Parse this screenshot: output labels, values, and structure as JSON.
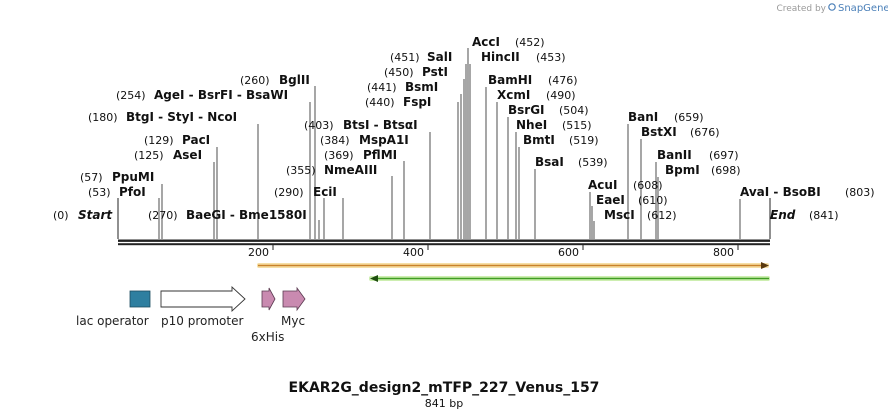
{
  "watermark": {
    "created_by": "Created by",
    "brand": "SnapGene"
  },
  "title": "EKAR2G_design2_mTFP_227_Venus_157",
  "subtitle": "841 bp",
  "colors": {
    "line": "#222222",
    "orf_forward": "#e8a24a",
    "orf_reverse": "#62c13a",
    "lac_operator": "#2e7fa0",
    "promoter": "#ffffff",
    "tag": "#c98ab0"
  },
  "ends": {
    "start_label": "Start",
    "start_pos": "(0)",
    "end_label": "End",
    "end_pos": "(841)"
  },
  "sites": [
    {
      "name": "AccI",
      "pos": "(452)"
    },
    {
      "name": "HincII",
      "pos": "(453)"
    },
    {
      "name": "SalI",
      "pos": "(451)"
    },
    {
      "name": "PstI",
      "pos": "(450)"
    },
    {
      "name": "BamHI",
      "pos": "(476)"
    },
    {
      "name": "BsmI",
      "pos": "(441)"
    },
    {
      "name": "XcmI",
      "pos": "(490)"
    },
    {
      "name": "FspI",
      "pos": "(440)"
    },
    {
      "name": "BsrGI",
      "pos": "(504)"
    },
    {
      "name": "NheI",
      "pos": "(515)"
    },
    {
      "name": "BmtI",
      "pos": "(519)"
    },
    {
      "name": "BsaI",
      "pos": "(539)"
    },
    {
      "name": "BglII",
      "pos": "(260)"
    },
    {
      "name": "AgeI - BsrFI - BsaWI",
      "pos": "(254)"
    },
    {
      "name": "BtgI - StyI - NcoI",
      "pos": "(180)"
    },
    {
      "name": "BtsI - BtsαI",
      "pos": "(403)"
    },
    {
      "name": "MspA1I",
      "pos": "(384)"
    },
    {
      "name": "PflMI",
      "pos": "(369)"
    },
    {
      "name": "NmeAIII",
      "pos": "(355)"
    },
    {
      "name": "EciI",
      "pos": "(290)"
    },
    {
      "name": "PacI",
      "pos": "(129)"
    },
    {
      "name": "AseI",
      "pos": "(125)"
    },
    {
      "name": "PpuMI",
      "pos": "(57)"
    },
    {
      "name": "PfoI",
      "pos": "(53)"
    },
    {
      "name": "BaeGI - Bme1580I",
      "pos": "(270)"
    },
    {
      "name": "BanI",
      "pos": "(659)"
    },
    {
      "name": "BstXI",
      "pos": "(676)"
    },
    {
      "name": "BanII",
      "pos": "(697)"
    },
    {
      "name": "BpmI",
      "pos": "(698)"
    },
    {
      "name": "AcuI",
      "pos": "(608)"
    },
    {
      "name": "EaeI",
      "pos": "(610)"
    },
    {
      "name": "MscI",
      "pos": "(612)"
    },
    {
      "name": "AvaI - BsoBI",
      "pos": "(803)"
    }
  ],
  "ruler": {
    "ticks": [
      "200",
      "400",
      "600",
      "800"
    ]
  },
  "orfs": [
    {
      "direction": "forward",
      "from_bp": 183,
      "to_bp": 841
    },
    {
      "direction": "reverse",
      "from_bp": 325,
      "to_bp": 841
    }
  ],
  "features": [
    {
      "label": "lac operator"
    },
    {
      "label": "p10 promoter"
    },
    {
      "label": "6xHis"
    },
    {
      "label": "Myc"
    }
  ]
}
